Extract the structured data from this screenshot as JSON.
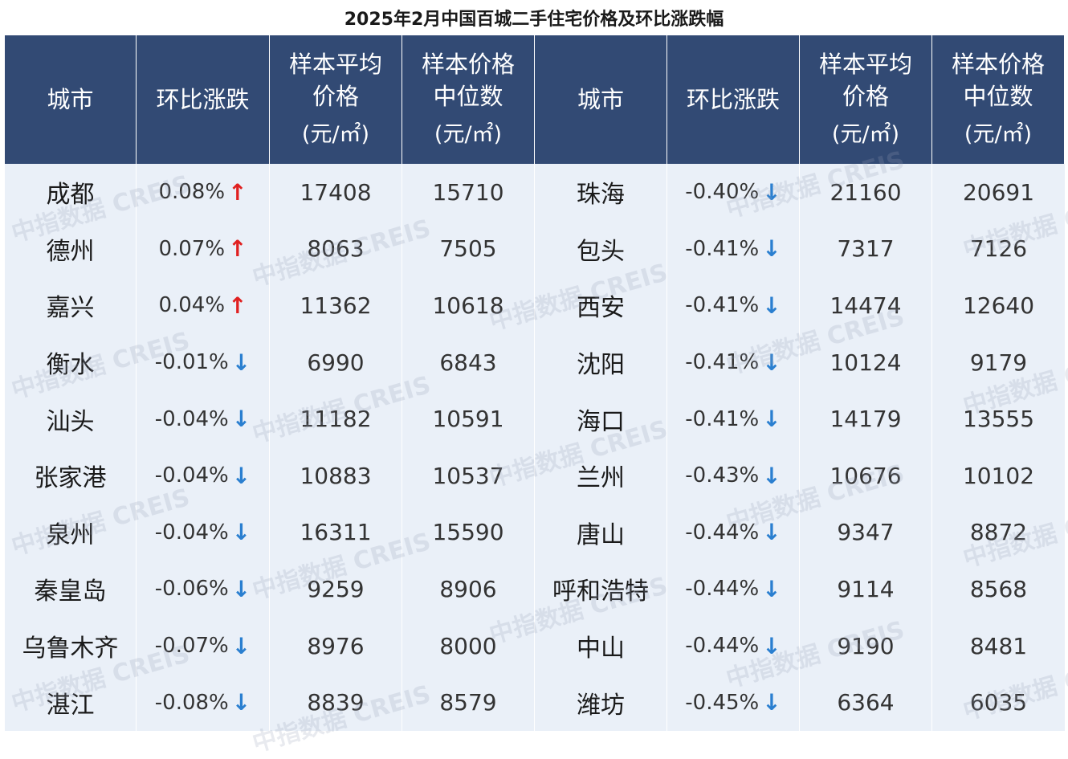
{
  "title": "2025年2月中国百城二手住宅价格及环比涨跌幅",
  "headers": [
    {
      "lines": [
        "城市"
      ],
      "unit": ""
    },
    {
      "lines": [
        "环比涨跌"
      ],
      "unit": ""
    },
    {
      "lines": [
        "样本平均",
        "价格"
      ],
      "unit": "(元/㎡)"
    },
    {
      "lines": [
        "样本价格",
        "中位数"
      ],
      "unit": "(元/㎡)"
    },
    {
      "lines": [
        "城市"
      ],
      "unit": ""
    },
    {
      "lines": [
        "环比涨跌"
      ],
      "unit": ""
    },
    {
      "lines": [
        "样本平均",
        "价格"
      ],
      "unit": "(元/㎡)"
    },
    {
      "lines": [
        "样本价格",
        "中位数"
      ],
      "unit": "(元/㎡)"
    }
  ],
  "watermark": "中指数据 CREIS",
  "colors": {
    "header_bg": "#324a74",
    "row_bg": "#eaf0f8",
    "up": "#e02020",
    "down": "#2a7fd0"
  },
  "chart_data": {
    "type": "table",
    "title": "2025年2月中国百城二手住宅价格及环比涨跌幅",
    "columns": [
      "城市",
      "环比涨跌",
      "样本平均价格(元/㎡)",
      "样本价格中位数(元/㎡)"
    ],
    "left": [
      {
        "city": "成都",
        "change": "0.08%",
        "dir": "up",
        "avg": "17408",
        "median": "15710"
      },
      {
        "city": "德州",
        "change": "0.07%",
        "dir": "up",
        "avg": "8063",
        "median": "7505"
      },
      {
        "city": "嘉兴",
        "change": "0.04%",
        "dir": "up",
        "avg": "11362",
        "median": "10618"
      },
      {
        "city": "衡水",
        "change": "-0.01%",
        "dir": "down",
        "avg": "6990",
        "median": "6843"
      },
      {
        "city": "汕头",
        "change": "-0.04%",
        "dir": "down",
        "avg": "11182",
        "median": "10591"
      },
      {
        "city": "张家港",
        "change": "-0.04%",
        "dir": "down",
        "avg": "10883",
        "median": "10537"
      },
      {
        "city": "泉州",
        "change": "-0.04%",
        "dir": "down",
        "avg": "16311",
        "median": "15590"
      },
      {
        "city": "秦皇岛",
        "change": "-0.06%",
        "dir": "down",
        "avg": "9259",
        "median": "8906"
      },
      {
        "city": "乌鲁木齐",
        "change": "-0.07%",
        "dir": "down",
        "avg": "8976",
        "median": "8000"
      },
      {
        "city": "湛江",
        "change": "-0.08%",
        "dir": "down",
        "avg": "8839",
        "median": "8579"
      }
    ],
    "right": [
      {
        "city": "珠海",
        "change": "-0.40%",
        "dir": "down",
        "avg": "21160",
        "median": "20691"
      },
      {
        "city": "包头",
        "change": "-0.41%",
        "dir": "down",
        "avg": "7317",
        "median": "7126"
      },
      {
        "city": "西安",
        "change": "-0.41%",
        "dir": "down",
        "avg": "14474",
        "median": "12640"
      },
      {
        "city": "沈阳",
        "change": "-0.41%",
        "dir": "down",
        "avg": "10124",
        "median": "9179"
      },
      {
        "city": "海口",
        "change": "-0.41%",
        "dir": "down",
        "avg": "14179",
        "median": "13555"
      },
      {
        "city": "兰州",
        "change": "-0.43%",
        "dir": "down",
        "avg": "10676",
        "median": "10102"
      },
      {
        "city": "唐山",
        "change": "-0.44%",
        "dir": "down",
        "avg": "9347",
        "median": "8872"
      },
      {
        "city": "呼和浩特",
        "change": "-0.44%",
        "dir": "down",
        "avg": "9114",
        "median": "8568"
      },
      {
        "city": "中山",
        "change": "-0.44%",
        "dir": "down",
        "avg": "9190",
        "median": "8481"
      },
      {
        "city": "潍坊",
        "change": "-0.45%",
        "dir": "down",
        "avg": "6364",
        "median": "6035"
      }
    ]
  }
}
